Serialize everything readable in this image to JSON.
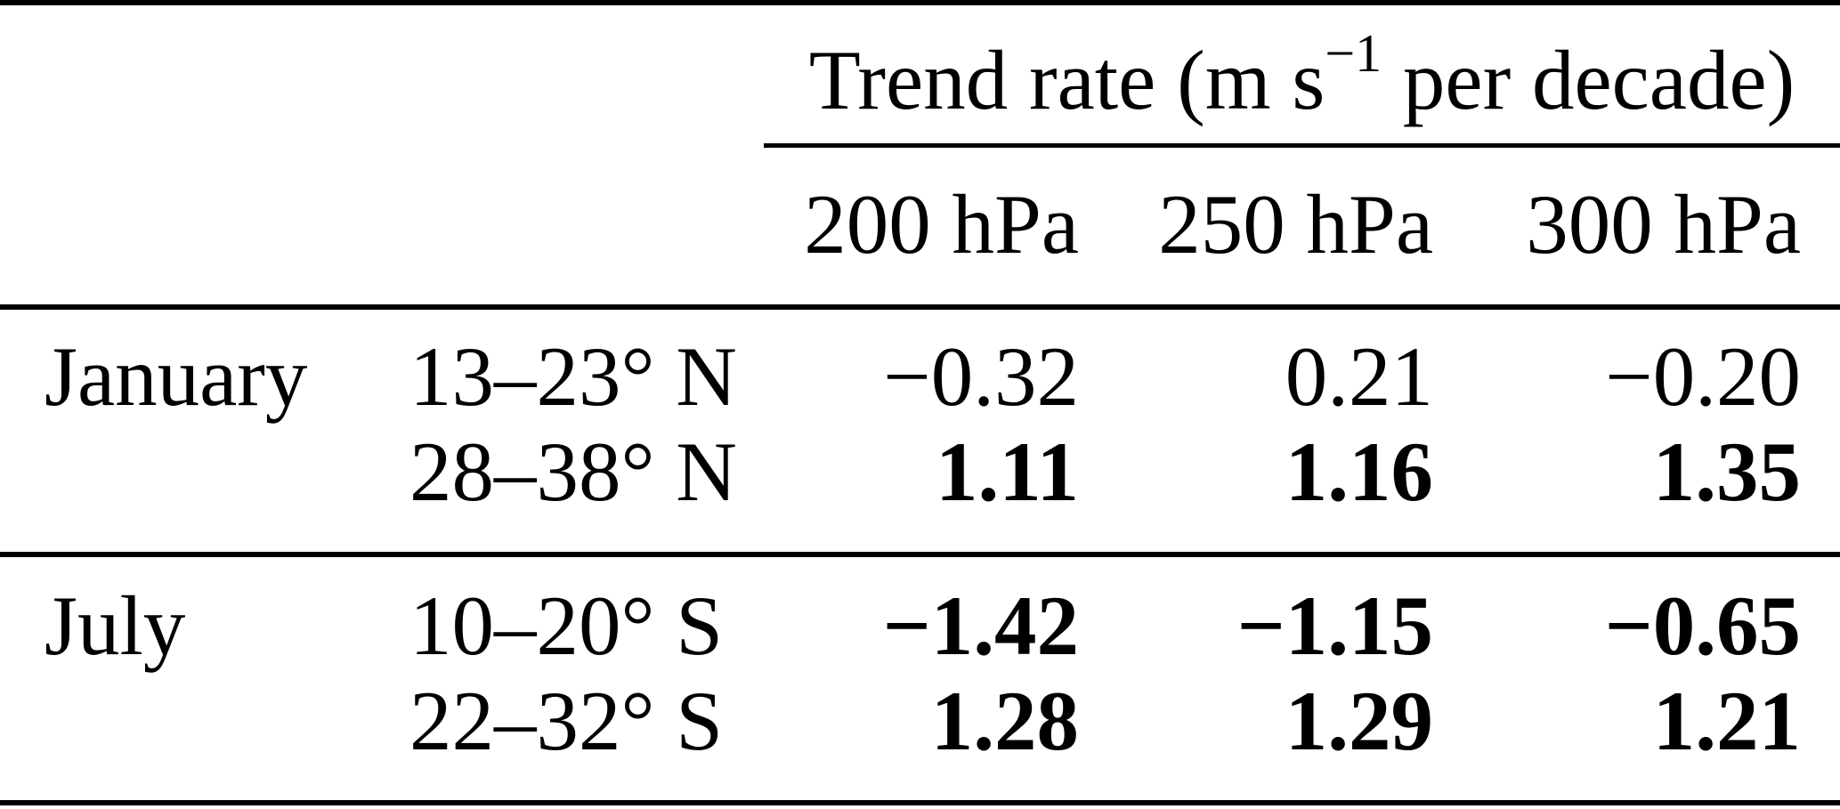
{
  "page": {
    "background_color": "#ffffff",
    "text_color": "#000000",
    "rule_color": "#000000"
  },
  "table": {
    "title": {
      "prefix": "Trend rate (m s",
      "superscript": "−1",
      "suffix": " per decade)"
    },
    "column_headers": [
      "200 hPa",
      "250 hPa",
      "300 hPa"
    ],
    "rows": [
      {
        "month": "January",
        "latitude": "13–23° N",
        "values": [
          "−0.32",
          "0.21",
          "−0.20"
        ]
      },
      {
        "month": "",
        "latitude": "28–38° N",
        "values": [
          "1.11",
          "1.16",
          "1.35"
        ]
      },
      {
        "month": "July",
        "latitude": "10–20° S",
        "values": [
          "−1.42",
          "−1.15",
          "−0.65"
        ]
      },
      {
        "month": "",
        "latitude": "22–32° S",
        "values": [
          "1.28",
          "1.29",
          "1.21"
        ]
      }
    ]
  },
  "chart_data": {
    "type": "table",
    "title": "Trend rate (m s-1 per decade)",
    "column_headers": [
      "",
      "",
      "200 hPa",
      "250 hPa",
      "300 hPa"
    ],
    "rows": [
      {
        "month": "January",
        "latitude_band": "13-23 N",
        "values": [
          -0.32,
          0.21,
          -0.2
        ],
        "bold": [
          false,
          false,
          false
        ]
      },
      {
        "month": "January",
        "latitude_band": "28-38 N",
        "values": [
          1.11,
          1.16,
          1.35
        ],
        "bold": [
          true,
          true,
          true
        ]
      },
      {
        "month": "July",
        "latitude_band": "10-20 S",
        "values": [
          -1.42,
          -1.15,
          -0.65
        ],
        "bold": [
          true,
          true,
          true
        ]
      },
      {
        "month": "July",
        "latitude_band": "22-32 S",
        "values": [
          1.28,
          1.29,
          1.21
        ],
        "bold": [
          true,
          true,
          true
        ]
      }
    ]
  }
}
